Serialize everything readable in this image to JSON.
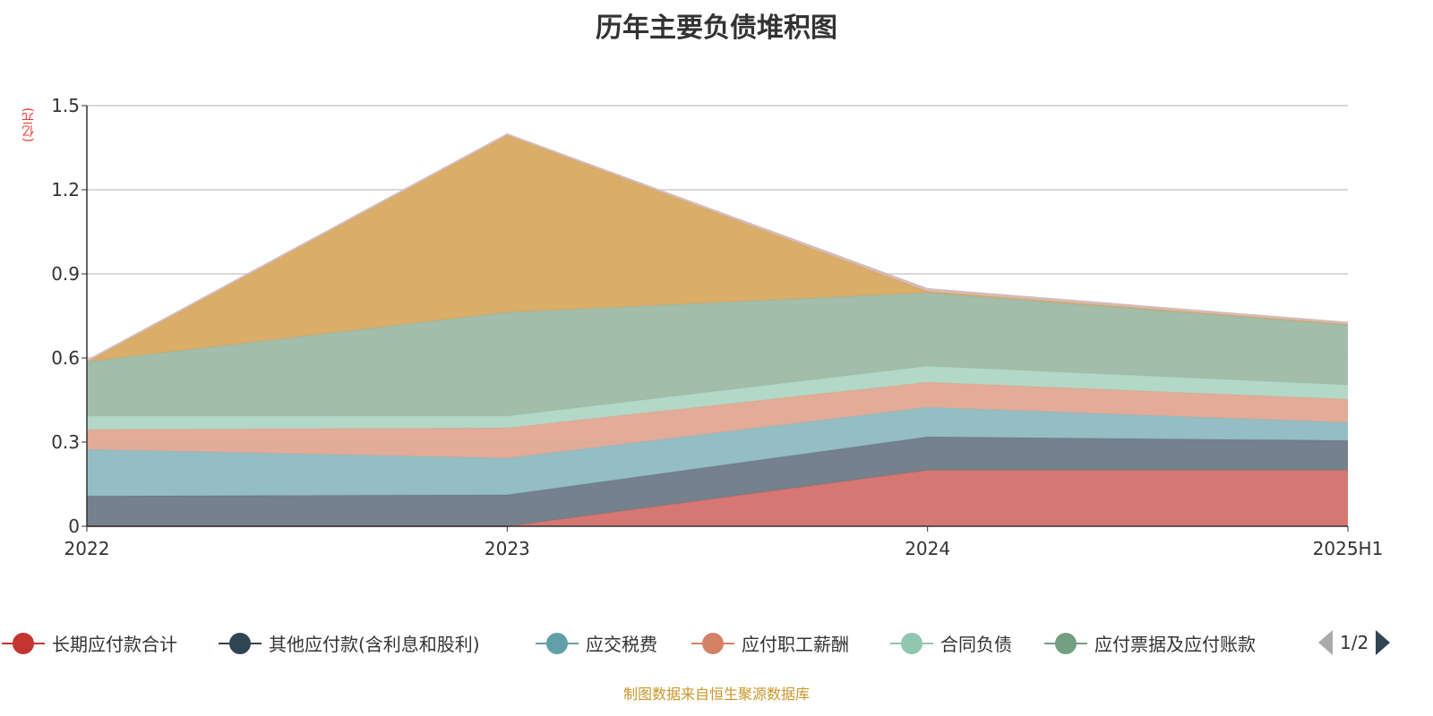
{
  "title": "历年主要负债堆积图",
  "unit": "(亿元)",
  "source": "制图数据来自恒生聚源数据库",
  "pager": {
    "label": "1/2"
  },
  "chart_data": {
    "type": "area",
    "stacked": true,
    "title": "历年主要负债堆积图",
    "ylabel": "(亿元)",
    "ylim": [
      0,
      1.5
    ],
    "yticks": [
      "0",
      "0.3",
      "0.6",
      "0.9",
      "1.2",
      "1.5"
    ],
    "ytick_values": [
      0,
      0.3,
      0.6,
      0.9,
      1.2,
      1.5
    ],
    "categories": [
      "2022",
      "2023",
      "2024",
      "2025H1"
    ],
    "grid": true,
    "legend_position": "bottom",
    "series": [
      {
        "name": "长期应付款合计",
        "color": "#c23531",
        "fill": "#d4706c",
        "values": [
          0,
          0,
          0.2,
          0.2
        ]
      },
      {
        "name": "其他应付款(含利息和股利)",
        "color": "#2f4554",
        "fill": "#6e7b87",
        "values": [
          0.108,
          0.112,
          0.119,
          0.106
        ]
      },
      {
        "name": "应交税费",
        "color": "#61a0a8",
        "fill": "#8fbbc1",
        "values": [
          0.166,
          0.131,
          0.105,
          0.064
        ]
      },
      {
        "name": "应付职工薪酬",
        "color": "#d48265",
        "fill": "#e0a893",
        "values": [
          0.071,
          0.108,
          0.09,
          0.083
        ]
      },
      {
        "name": "合同负债",
        "color": "#91c7ae",
        "fill": "#aed6c4",
        "values": [
          0.048,
          0.042,
          0.057,
          0.051
        ]
      },
      {
        "name": "应付票据及应付账款",
        "color": "#749f83",
        "fill": "#9eb9a6",
        "values": [
          0.194,
          0.37,
          0.262,
          0.214
        ]
      },
      {
        "name": "",
        "color": "#ca8622",
        "fill": "#d8a961",
        "values": [
          0,
          0.632,
          0.005,
          0.003
        ]
      },
      {
        "name": "",
        "color": "#c9b4b4",
        "fill": "#d4bcbc",
        "values": [
          0.003,
          0.003,
          0.008,
          0.005
        ]
      }
    ]
  }
}
